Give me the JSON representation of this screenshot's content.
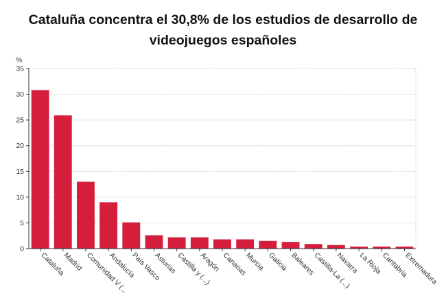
{
  "title": {
    "line1": "Cataluña concentra el 30,8% de los estudios de desarrollo de",
    "line2": "videojuegos españoles"
  },
  "colors": {
    "bar": "#d51e3c",
    "grid": "#c8c8c8",
    "axis": "#333333"
  },
  "chart_data": {
    "type": "bar",
    "title": "Cataluña concentra el 30,8% de los estudios de desarrollo de videojuegos españoles",
    "ylabel": "%",
    "xlabel": "",
    "ylim": [
      0,
      35
    ],
    "yticks": [
      0,
      5,
      10,
      15,
      20,
      25,
      30,
      35
    ],
    "grid": true,
    "categories": [
      "Cataluña",
      "Madrid",
      "Comunidad V (...",
      "Andalucía",
      "País Vasco",
      "Asturias",
      "Castilla y (...)",
      "Aragón",
      "Canarias",
      "Murcia",
      "Galicia",
      "Baleares",
      "Castilla-La (...)",
      "Navarra",
      "La Rioja",
      "Cantabria",
      "Extremadura"
    ],
    "values": [
      30.8,
      25.9,
      13.0,
      9.0,
      5.1,
      2.6,
      2.2,
      2.2,
      1.8,
      1.8,
      1.5,
      1.3,
      0.9,
      0.7,
      0.4,
      0.4,
      0.4
    ]
  }
}
